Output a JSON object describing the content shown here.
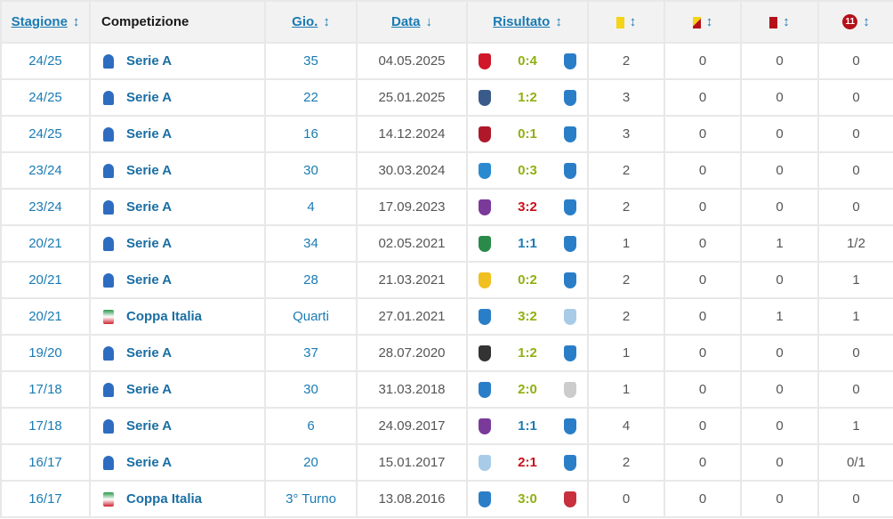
{
  "headers": {
    "stagione": "Stagione",
    "competizione": "Competizione",
    "gio": "Gio.",
    "data": "Data",
    "risultato": "Risultato",
    "penalty_badge": "11"
  },
  "colors": {
    "link": "#1a7bb3",
    "win": "#8fb010",
    "draw": "#1a7bb3",
    "loss": "#c8101a",
    "yellow": "#f5d316",
    "red": "#b5101a"
  },
  "rows": [
    {
      "stagione": "24/25",
      "competizione": "Serie A",
      "comp_icon": "serie-a-logo",
      "gio": "35",
      "data": "04.05.2025",
      "home": "monza-crest",
      "score": "0:4",
      "outcome": "win",
      "away": "atalanta-crest",
      "yellow": "2",
      "yellow_red": "0",
      "red": "0",
      "penalties": "0"
    },
    {
      "stagione": "24/25",
      "competizione": "Serie A",
      "comp_icon": "serie-a-logo",
      "gio": "22",
      "data": "25.01.2025",
      "home": "como-crest",
      "score": "1:2",
      "outcome": "win",
      "away": "atalanta-crest",
      "yellow": "3",
      "yellow_red": "0",
      "red": "0",
      "penalties": "0"
    },
    {
      "stagione": "24/25",
      "competizione": "Serie A",
      "comp_icon": "serie-a-logo",
      "gio": "16",
      "data": "14.12.2024",
      "home": "cagliari-crest",
      "score": "0:1",
      "outcome": "win",
      "away": "atalanta-crest",
      "yellow": "3",
      "yellow_red": "0",
      "red": "0",
      "penalties": "0"
    },
    {
      "stagione": "23/24",
      "competizione": "Serie A",
      "comp_icon": "serie-a-logo",
      "gio": "30",
      "data": "30.03.2024",
      "home": "napoli-crest",
      "score": "0:3",
      "outcome": "win",
      "away": "atalanta-crest",
      "yellow": "2",
      "yellow_red": "0",
      "red": "0",
      "penalties": "0"
    },
    {
      "stagione": "23/24",
      "competizione": "Serie A",
      "comp_icon": "serie-a-logo",
      "gio": "4",
      "data": "17.09.2023",
      "home": "fiorentina-crest",
      "score": "3:2",
      "outcome": "loss",
      "away": "atalanta-crest",
      "yellow": "2",
      "yellow_red": "0",
      "red": "0",
      "penalties": "0"
    },
    {
      "stagione": "20/21",
      "competizione": "Serie A",
      "comp_icon": "serie-a-logo",
      "gio": "34",
      "data": "02.05.2021",
      "home": "sassuolo-crest",
      "score": "1:1",
      "outcome": "draw",
      "away": "atalanta-crest",
      "yellow": "1",
      "yellow_red": "0",
      "red": "1",
      "penalties": "1/2"
    },
    {
      "stagione": "20/21",
      "competizione": "Serie A",
      "comp_icon": "serie-a-logo",
      "gio": "28",
      "data": "21.03.2021",
      "home": "verona-crest",
      "score": "0:2",
      "outcome": "win",
      "away": "atalanta-crest",
      "yellow": "2",
      "yellow_red": "0",
      "red": "0",
      "penalties": "1"
    },
    {
      "stagione": "20/21",
      "competizione": "Coppa Italia",
      "comp_icon": "coppa-italia-logo",
      "gio": "Quarti",
      "data": "27.01.2021",
      "home": "atalanta-crest",
      "score": "3:2",
      "outcome": "win",
      "away": "lazio-crest",
      "yellow": "2",
      "yellow_red": "0",
      "red": "1",
      "penalties": "1"
    },
    {
      "stagione": "19/20",
      "competizione": "Serie A",
      "comp_icon": "serie-a-logo",
      "gio": "37",
      "data": "28.07.2020",
      "home": "parma-crest",
      "score": "1:2",
      "outcome": "win",
      "away": "atalanta-crest",
      "yellow": "1",
      "yellow_red": "0",
      "red": "0",
      "penalties": "0"
    },
    {
      "stagione": "17/18",
      "competizione": "Serie A",
      "comp_icon": "serie-a-tim-logo",
      "gio": "30",
      "data": "31.03.2018",
      "home": "atalanta-crest",
      "score": "2:0",
      "outcome": "win",
      "away": "udinese-crest",
      "yellow": "1",
      "yellow_red": "0",
      "red": "0",
      "penalties": "0"
    },
    {
      "stagione": "17/18",
      "competizione": "Serie A",
      "comp_icon": "serie-a-tim-logo",
      "gio": "6",
      "data": "24.09.2017",
      "home": "fiorentina-crest",
      "score": "1:1",
      "outcome": "draw",
      "away": "atalanta-crest",
      "yellow": "4",
      "yellow_red": "0",
      "red": "0",
      "penalties": "1"
    },
    {
      "stagione": "16/17",
      "competizione": "Serie A",
      "comp_icon": "serie-a-tim-logo",
      "gio": "20",
      "data": "15.01.2017",
      "home": "lazio-crest",
      "score": "2:1",
      "outcome": "loss",
      "away": "atalanta-crest",
      "yellow": "2",
      "yellow_red": "0",
      "red": "0",
      "penalties": "0/1"
    },
    {
      "stagione": "16/17",
      "competizione": "Coppa Italia",
      "comp_icon": "coppa-italia-logo",
      "gio": "3° Turno",
      "data": "13.08.2016",
      "home": "atalanta-crest",
      "score": "3:0",
      "outcome": "win",
      "away": "cremonese-crest",
      "yellow": "0",
      "yellow_red": "0",
      "red": "0",
      "penalties": "0"
    }
  ]
}
